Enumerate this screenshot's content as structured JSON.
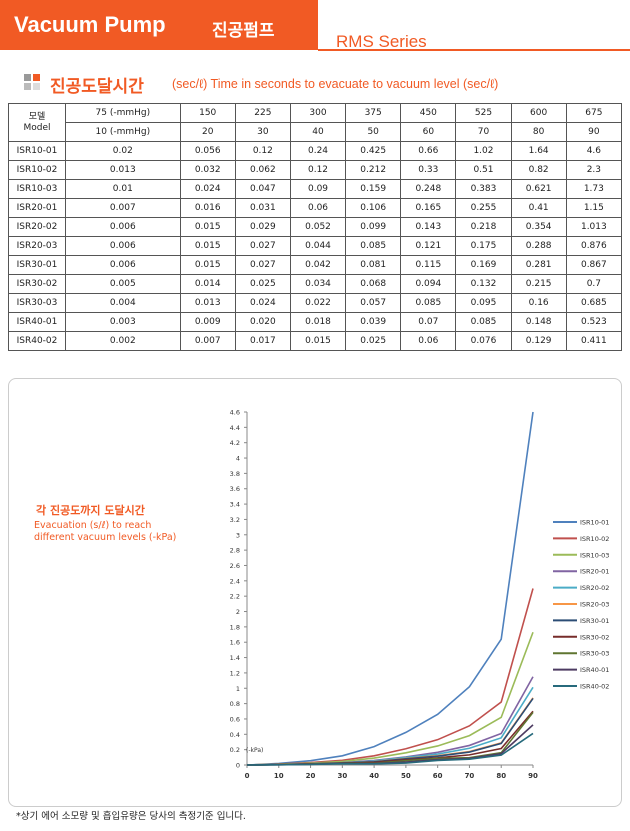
{
  "header": {
    "title": "Vacuum Pump",
    "title_ko": "진공펌프",
    "series": "RMS Series"
  },
  "section": {
    "title": "진공도달시간",
    "subtitle": "(sec/ℓ) Time in seconds to evacuate to vacuum level (sec/ℓ)"
  },
  "table": {
    "header": {
      "model": [
        "모델",
        "Model"
      ],
      "mmhg": [
        "75 (-mmHg)",
        "150",
        "225",
        "300",
        "375",
        "450",
        "525",
        "600",
        "675"
      ],
      "kpa": [
        "10 (-mmHg)",
        "20",
        "30",
        "40",
        "50",
        "60",
        "70",
        "80",
        "90"
      ]
    },
    "rows": [
      [
        "ISR10-01",
        "0.02",
        "0.056",
        "0.12",
        "0.24",
        "0.425",
        "0.66",
        "1.02",
        "1.64",
        "4.6"
      ],
      [
        "ISR10-02",
        "0.013",
        "0.032",
        "0.062",
        "0.12",
        "0.212",
        "0.33",
        "0.51",
        "0.82",
        "2.3"
      ],
      [
        "ISR10-03",
        "0.01",
        "0.024",
        "0.047",
        "0.09",
        "0.159",
        "0.248",
        "0.383",
        "0.621",
        "1.73"
      ],
      [
        "ISR20-01",
        "0.007",
        "0.016",
        "0.031",
        "0.06",
        "0.106",
        "0.165",
        "0.255",
        "0.41",
        "1.15"
      ],
      [
        "ISR20-02",
        "0.006",
        "0.015",
        "0.029",
        "0.052",
        "0.099",
        "0.143",
        "0.218",
        "0.354",
        "1.013"
      ],
      [
        "ISR20-03",
        "0.006",
        "0.015",
        "0.027",
        "0.044",
        "0.085",
        "0.121",
        "0.175",
        "0.288",
        "0.876"
      ],
      [
        "ISR30-01",
        "0.006",
        "0.015",
        "0.027",
        "0.042",
        "0.081",
        "0.115",
        "0.169",
        "0.281",
        "0.867"
      ],
      [
        "ISR30-02",
        "0.005",
        "0.014",
        "0.025",
        "0.034",
        "0.068",
        "0.094",
        "0.132",
        "0.215",
        "0.7"
      ],
      [
        "ISR30-03",
        "0.004",
        "0.013",
        "0.024",
        "0.022",
        "0.057",
        "0.085",
        "0.095",
        "0.16",
        "0.685"
      ],
      [
        "ISR40-01",
        "0.003",
        "0.009",
        "0.020",
        "0.018",
        "0.039",
        "0.07",
        "0.085",
        "0.148",
        "0.523"
      ],
      [
        "ISR40-02",
        "0.002",
        "0.007",
        "0.017",
        "0.015",
        "0.025",
        "0.06",
        "0.076",
        "0.129",
        "0.411"
      ]
    ]
  },
  "chart_data": {
    "type": "line",
    "title": "각 진공도까지 도달시간",
    "subtitle": "Evacuation (s/ℓ) to reach different vacuum levels (-kPa)",
    "annotation": "(-kPa)",
    "x": [
      0,
      10,
      20,
      30,
      40,
      50,
      60,
      70,
      80,
      90
    ],
    "xlim": [
      0,
      90
    ],
    "xticks": [
      0,
      10,
      20,
      30,
      40,
      50,
      60,
      70,
      80,
      90
    ],
    "ylim": [
      0,
      4.6
    ],
    "yticks": [
      0,
      0.2,
      0.4,
      0.6,
      0.8,
      1,
      1.2,
      1.4,
      1.6,
      1.8,
      2,
      2.2,
      2.4,
      2.6,
      2.8,
      3,
      3.2,
      3.4,
      3.6,
      3.8,
      4,
      4.2,
      4.4,
      4.6
    ],
    "grid": false,
    "legend": "right",
    "series": [
      {
        "name": "ISR10-01",
        "color": "#4f81bd",
        "values": [
          0,
          0.02,
          0.056,
          0.12,
          0.24,
          0.425,
          0.66,
          1.02,
          1.64,
          4.6
        ]
      },
      {
        "name": "ISR10-02",
        "color": "#c0504d",
        "values": [
          0,
          0.013,
          0.032,
          0.062,
          0.12,
          0.212,
          0.33,
          0.51,
          0.82,
          2.3
        ]
      },
      {
        "name": "ISR10-03",
        "color": "#9bbb59",
        "values": [
          0,
          0.01,
          0.024,
          0.047,
          0.09,
          0.159,
          0.248,
          0.383,
          0.621,
          1.73
        ]
      },
      {
        "name": "ISR20-01",
        "color": "#8064a2",
        "values": [
          0,
          0.007,
          0.016,
          0.031,
          0.06,
          0.106,
          0.165,
          0.255,
          0.41,
          1.15
        ]
      },
      {
        "name": "ISR20-02",
        "color": "#4bacc6",
        "values": [
          0,
          0.006,
          0.015,
          0.029,
          0.052,
          0.099,
          0.143,
          0.218,
          0.354,
          1.013
        ]
      },
      {
        "name": "ISR20-03",
        "color": "#f79646",
        "values": [
          0,
          0.006,
          0.015,
          0.027,
          0.044,
          0.085,
          0.121,
          0.175,
          0.288,
          0.876
        ]
      },
      {
        "name": "ISR30-01",
        "color": "#2c4d75",
        "values": [
          0,
          0.006,
          0.015,
          0.027,
          0.042,
          0.081,
          0.115,
          0.169,
          0.281,
          0.867
        ]
      },
      {
        "name": "ISR30-02",
        "color": "#772c2a",
        "values": [
          0,
          0.005,
          0.014,
          0.025,
          0.034,
          0.068,
          0.094,
          0.132,
          0.215,
          0.7
        ]
      },
      {
        "name": "ISR30-03",
        "color": "#5f7530",
        "values": [
          0,
          0.004,
          0.013,
          0.024,
          0.022,
          0.057,
          0.085,
          0.095,
          0.16,
          0.685
        ]
      },
      {
        "name": "ISR40-01",
        "color": "#4d3b62",
        "values": [
          0,
          0.003,
          0.009,
          0.02,
          0.018,
          0.039,
          0.07,
          0.085,
          0.148,
          0.523
        ]
      },
      {
        "name": "ISR40-02",
        "color": "#276a7c",
        "values": [
          0,
          0.002,
          0.007,
          0.017,
          0.015,
          0.025,
          0.06,
          0.076,
          0.129,
          0.411
        ]
      }
    ]
  },
  "footnote": "*상기 에어 소모량 및 흡입유량은 당사의 측정기준 입니다."
}
